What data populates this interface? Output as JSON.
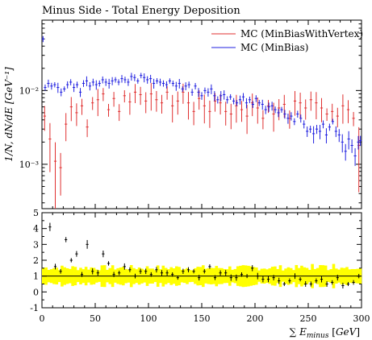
{
  "chart_data": [
    {
      "type": "scatter",
      "title": "Minus Side - Total Energy Deposition",
      "ylabel": "1/N, dN/dE [GeV⁻¹]",
      "xlabel": "∑ E_minus [GeV]",
      "x_range": [
        0,
        300
      ],
      "y_range_log": [
        0.00025,
        0.09
      ],
      "yscale": "log",
      "y_tick_labels": [
        "10⁻³",
        "10⁻²"
      ],
      "y_tick_values": [
        0.001,
        0.01
      ],
      "legend_position": "top-right",
      "series": [
        {
          "name": "MC (MinBiasWithVertex)",
          "color": "#e03030",
          "x": [
            2.5,
            7.5,
            12.5,
            17.5,
            22.5,
            27.5,
            32.5,
            37.5,
            42.5,
            47.5,
            52.5,
            57.5,
            62.5,
            67.5,
            72.5,
            77.5,
            82.5,
            87.5,
            92.5,
            97.5,
            102.5,
            107.5,
            112.5,
            117.5,
            122.5,
            127.5,
            132.5,
            137.5,
            142.5,
            147.5,
            152.5,
            157.5,
            162.5,
            167.5,
            172.5,
            177.5,
            182.5,
            187.5,
            192.5,
            197.5,
            202.5,
            207.5,
            212.5,
            217.5,
            222.5,
            227.5,
            232.5,
            237.5,
            242.5,
            247.5,
            252.5,
            257.5,
            262.5,
            267.5,
            272.5,
            277.5,
            282.5,
            287.5,
            292.5,
            297.5
          ],
          "y": [
            0.0045,
            0.0022,
            0.0011,
            0.0009,
            0.0035,
            0.006,
            0.005,
            0.0062,
            0.0032,
            0.0068,
            0.0075,
            0.009,
            0.0055,
            0.0078,
            0.0052,
            0.0085,
            0.007,
            0.0095,
            0.0088,
            0.0072,
            0.009,
            0.0075,
            0.0068,
            0.0095,
            0.0062,
            0.0072,
            0.0095,
            0.0068,
            0.0052,
            0.0078,
            0.0062,
            0.0052,
            0.0072,
            0.0068,
            0.0052,
            0.0048,
            0.0062,
            0.0055,
            0.0045,
            0.0068,
            0.0058,
            0.0042,
            0.0062,
            0.0048,
            0.0058,
            0.0065,
            0.0042,
            0.0072,
            0.0068,
            0.0058,
            0.0075,
            0.0068,
            0.0058,
            0.0048,
            0.0052,
            0.0045,
            0.0062,
            0.0055,
            0.0042,
            0.0018
          ]
        },
        {
          "name": "MC (MinBias)",
          "color": "#2020e0",
          "x": [
            1,
            3,
            6,
            9,
            12,
            15,
            18,
            21,
            24,
            27,
            30,
            33,
            36,
            39,
            42,
            45,
            48,
            51,
            54,
            57,
            60,
            63,
            66,
            69,
            72,
            75,
            78,
            81,
            84,
            87,
            90,
            93,
            96,
            99,
            102,
            105,
            108,
            111,
            114,
            117,
            120,
            123,
            126,
            129,
            132,
            135,
            138,
            141,
            144,
            147,
            150,
            153,
            156,
            159,
            162,
            165,
            168,
            171,
            174,
            177,
            180,
            183,
            186,
            189,
            192,
            195,
            198,
            201,
            204,
            207,
            210,
            213,
            216,
            219,
            222,
            225,
            228,
            231,
            234,
            237,
            240,
            243,
            246,
            249,
            252,
            255,
            258,
            261,
            264,
            267,
            270,
            273,
            276,
            279,
            282,
            285,
            288,
            291,
            294,
            297,
            299
          ],
          "y": [
            0.05,
            0.011,
            0.0125,
            0.0115,
            0.012,
            0.011,
            0.0095,
            0.0105,
            0.012,
            0.013,
            0.011,
            0.012,
            0.0095,
            0.0125,
            0.0135,
            0.0115,
            0.013,
            0.012,
            0.0125,
            0.014,
            0.013,
            0.0125,
            0.0135,
            0.014,
            0.013,
            0.0145,
            0.014,
            0.013,
            0.0155,
            0.015,
            0.0135,
            0.016,
            0.015,
            0.014,
            0.0145,
            0.0125,
            0.0135,
            0.013,
            0.0125,
            0.012,
            0.0135,
            0.0125,
            0.0115,
            0.0125,
            0.0105,
            0.0115,
            0.012,
            0.0095,
            0.0115,
            0.0095,
            0.0085,
            0.01,
            0.0095,
            0.0105,
            0.0085,
            0.0075,
            0.0085,
            0.0088,
            0.0075,
            0.0082,
            0.0072,
            0.0068,
            0.0075,
            0.0082,
            0.0068,
            0.0075,
            0.0065,
            0.0078,
            0.0068,
            0.0065,
            0.0055,
            0.006,
            0.0062,
            0.0055,
            0.005,
            0.0055,
            0.0048,
            0.0042,
            0.0045,
            0.0038,
            0.0048,
            0.0042,
            0.0035,
            0.0028,
            0.003,
            0.0026,
            0.003,
            0.0028,
            0.0035,
            0.0025,
            0.0032,
            0.0038,
            0.0028,
            0.0025,
            0.002,
            0.0015,
            0.0022,
            0.0018,
            0.0013,
            0.002,
            0.0021
          ]
        }
      ]
    },
    {
      "type": "scatter",
      "ylabel": "",
      "xlabel": "∑ E_minus [GeV]",
      "x_range": [
        0,
        300
      ],
      "y_range": [
        -1,
        5
      ],
      "y_ticks": [
        -1,
        0,
        1,
        2,
        3,
        4,
        5
      ],
      "x_ticks": [
        0,
        50,
        100,
        150,
        200,
        250,
        300
      ],
      "band_color": "#ffff00",
      "reference_line": 1,
      "ratio": {
        "x": [
          7.5,
          12.5,
          17.5,
          22.5,
          27.5,
          32.5,
          37.5,
          42.5,
          47.5,
          52.5,
          57.5,
          62.5,
          67.5,
          72.5,
          77.5,
          82.5,
          87.5,
          92.5,
          97.5,
          102.5,
          107.5,
          112.5,
          117.5,
          122.5,
          127.5,
          132.5,
          137.5,
          142.5,
          147.5,
          152.5,
          157.5,
          162.5,
          167.5,
          172.5,
          177.5,
          182.5,
          187.5,
          192.5,
          197.5,
          202.5,
          207.5,
          212.5,
          217.5,
          222.5,
          227.5,
          232.5,
          237.5,
          242.5,
          247.5,
          252.5,
          257.5,
          262.5,
          267.5,
          272.5,
          277.5,
          282.5,
          287.5,
          292.5,
          297.5
        ],
        "y": [
          4.1,
          1.6,
          1.3,
          3.3,
          2.0,
          2.4,
          1.1,
          3.0,
          1.3,
          1.2,
          2.4,
          1.8,
          1.1,
          1.2,
          1.6,
          1.4,
          1.0,
          1.3,
          1.3,
          1.1,
          1.4,
          1.2,
          1.2,
          1.1,
          0.9,
          1.3,
          1.4,
          1.3,
          0.9,
          1.3,
          1.6,
          0.9,
          1.2,
          1.2,
          0.9,
          0.9,
          1.1,
          1.0,
          1.5,
          1.0,
          0.8,
          0.8,
          0.9,
          0.7,
          0.5,
          0.7,
          1.0,
          0.8,
          0.5,
          0.5,
          0.7,
          0.8,
          0.5,
          0.6,
          0.9,
          0.4,
          0.5,
          0.6,
          1.0
        ]
      }
    }
  ]
}
